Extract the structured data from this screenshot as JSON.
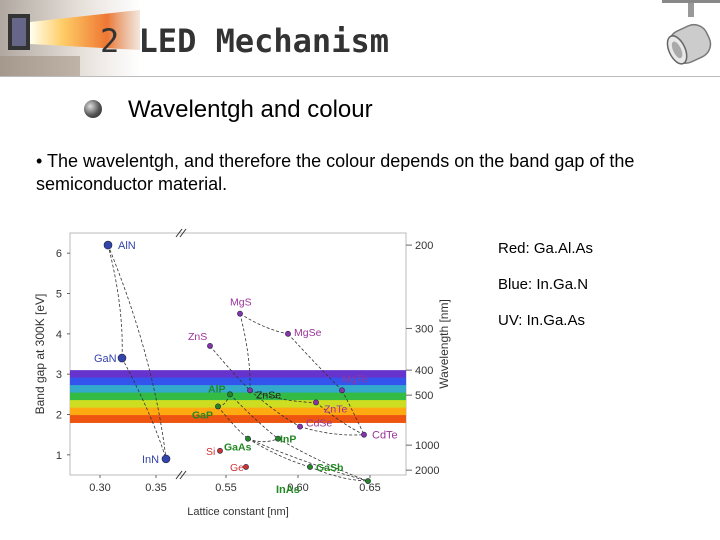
{
  "slide": {
    "title_number": "2",
    "title_text": "LED Mechanism",
    "subtitle": "Wavelentgh and colour",
    "bullet": "• The wavelentgh, and therefore the colour depends on the band gap of the semiconductor material."
  },
  "notes": [
    "Red: Ga.Al.As",
    "Blue: In.Ga.N",
    "UV: In.Ga.As"
  ],
  "chart_data": {
    "type": "scatter",
    "title": "",
    "xlabel": "Lattice constant [nm]",
    "ylabel": "Band gap at 300K [eV]",
    "y2label": "Wavelength [nm]",
    "x_ticks": [
      "0.30",
      "0.35",
      "0.55",
      "0.60",
      "0.65"
    ],
    "y_ticks": [
      1,
      2,
      3,
      4,
      5,
      6
    ],
    "y2_ticks": [
      200,
      300,
      400,
      500,
      1000,
      2000
    ],
    "ylim": [
      0.5,
      6.5
    ],
    "points": [
      {
        "label": "AlN",
        "band_gap": 6.2,
        "color": "#3344aa",
        "label_color": "#3344aa"
      },
      {
        "label": "GaN",
        "band_gap": 3.4,
        "color": "#3344aa",
        "label_color": "#3344aa"
      },
      {
        "label": "InN",
        "band_gap": 0.9,
        "color": "#3344aa",
        "label_color": "#3344aa"
      },
      {
        "label": "MgS",
        "band_gap": 4.5,
        "color": "#8833aa",
        "label_color": "#993399"
      },
      {
        "label": "MgSe",
        "band_gap": 4.0,
        "color": "#8833aa",
        "label_color": "#993399"
      },
      {
        "label": "ZnS",
        "band_gap": 3.7,
        "color": "#8833aa",
        "label_color": "#993399"
      },
      {
        "label": "MgTe",
        "band_gap": 2.6,
        "color": "#8833aa",
        "label_color": "#993399"
      },
      {
        "label": "AlP",
        "band_gap": 2.5,
        "color": "#228822",
        "label_color": "#228822"
      },
      {
        "label": "ZnSe",
        "band_gap": 2.6,
        "color": "#8833aa",
        "label_color": "#222222"
      },
      {
        "label": "ZnTe",
        "band_gap": 2.3,
        "color": "#8833aa",
        "label_color": "#993399"
      },
      {
        "label": "GaP",
        "band_gap": 2.2,
        "color": "#228822",
        "label_color": "#228822"
      },
      {
        "label": "CdSe",
        "band_gap": 1.7,
        "color": "#8833aa",
        "label_color": "#993399"
      },
      {
        "label": "CdTe",
        "band_gap": 1.5,
        "color": "#8833aa",
        "label_color": "#993399"
      },
      {
        "label": "InP",
        "band_gap": 1.4,
        "color": "#228822",
        "label_color": "#228822"
      },
      {
        "label": "GaAs",
        "band_gap": 1.4,
        "color": "#228822",
        "label_color": "#228822"
      },
      {
        "label": "GaSb",
        "band_gap": 0.7,
        "color": "#228822",
        "label_color": "#228822"
      },
      {
        "label": "InAs",
        "band_gap": 0.35,
        "color": "#228822",
        "label_color": "#228822"
      },
      {
        "label": "Si",
        "band_gap": 1.1,
        "color": "#cc3333",
        "label_color": "#cc3333"
      },
      {
        "label": "Ge",
        "band_gap": 0.7,
        "color": "#cc3333",
        "label_color": "#cc3333"
      }
    ],
    "visible_band": {
      "from_ev": 1.8,
      "to_ev": 3.1
    },
    "grid": false,
    "legend": "none"
  }
}
